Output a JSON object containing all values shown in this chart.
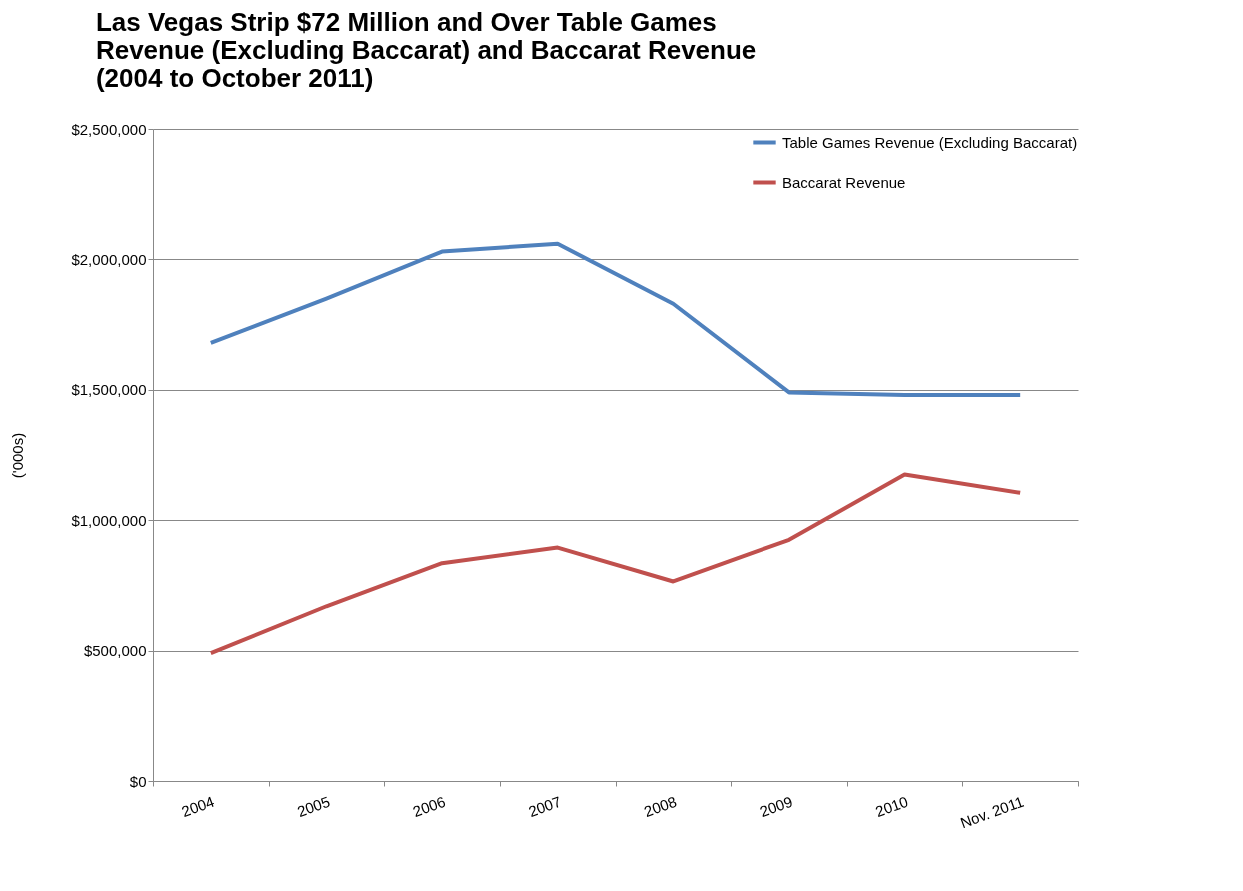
{
  "chart_data": {
    "type": "line",
    "title": "Las Vegas Strip $72 Million and Over Table Games Revenue (Excluding Baccarat) and Baccarat Revenue (2004 to October 2011)",
    "ylabel": "('000s)",
    "categories": [
      "2004",
      "2005",
      "2006",
      "2007",
      "2008",
      "2009",
      "2010",
      "Nov. 2011"
    ],
    "series": [
      {
        "name": "Table Games Revenue (Excluding Baccarat)",
        "color": "#4f81bd",
        "values": [
          1680000,
          1850000,
          2030000,
          2060000,
          1830000,
          1490000,
          1480000,
          1480000
        ]
      },
      {
        "name": "Baccarat Revenue",
        "color": "#c0504d",
        "values": [
          490000,
          670000,
          835000,
          895000,
          765000,
          925000,
          1175000,
          1105000
        ]
      }
    ],
    "ylim": [
      0,
      2500000
    ],
    "yticks": [
      {
        "value": 0,
        "label": "$0"
      },
      {
        "value": 500000,
        "label": "$500,000"
      },
      {
        "value": 1000000,
        "label": "$1,000,000"
      },
      {
        "value": 1500000,
        "label": "$1,500,000"
      },
      {
        "value": 2000000,
        "label": "$2,000,000"
      },
      {
        "value": 2500000,
        "label": "$2,500,000"
      }
    ],
    "grid": "y",
    "legend": "top right",
    "marker": "none",
    "line_style": "solid"
  }
}
